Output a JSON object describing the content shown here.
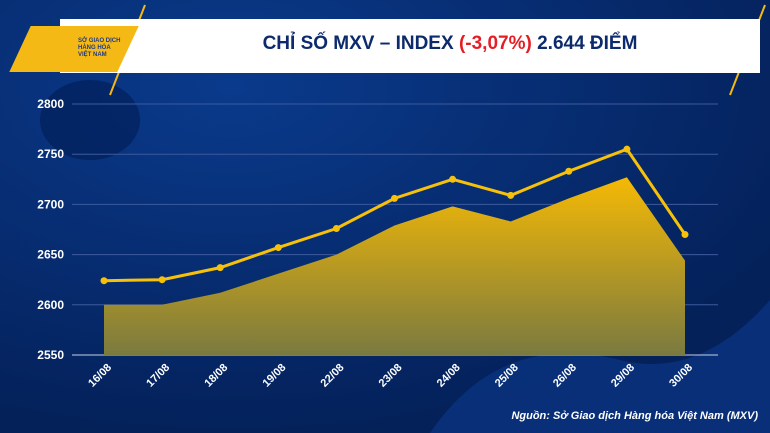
{
  "header": {
    "logo_lines": [
      "SỞ GIAO DỊCH",
      "HÀNG HÓA",
      "VIỆT NAM"
    ],
    "title_prefix": "CHỈ SỐ MXV – INDEX",
    "title_change": "(-3,07%)",
    "title_value": "2.644 ĐIỂM"
  },
  "source": "Nguồn: Sở Giao dịch Hàng hóa Việt Nam (MXV)",
  "colors": {
    "background": "#062a6e",
    "accent": "#f5b915",
    "negative": "#e41e26"
  },
  "chart_data": {
    "type": "line",
    "title": "CHỈ SỐ MXV – INDEX (-3,07%) 2.644 ĐIỂM",
    "categories": [
      "16/08",
      "17/08",
      "18/08",
      "19/08",
      "22/08",
      "23/08",
      "24/08",
      "25/08",
      "26/08",
      "29/08",
      "30/08"
    ],
    "series": [
      {
        "name": "line",
        "type": "line",
        "values": [
          2624,
          2625,
          2637,
          2657,
          2676,
          2706,
          2725,
          2709,
          2733,
          2755,
          2670
        ]
      },
      {
        "name": "area",
        "type": "area",
        "values": [
          2600,
          2600,
          2612,
          2631,
          2650,
          2679,
          2698,
          2683,
          2706,
          2727,
          2644
        ]
      }
    ],
    "yticks": [
      2550,
      2600,
      2650,
      2700,
      2750,
      2800
    ],
    "ylim": [
      2550,
      2800
    ],
    "grid": true,
    "xlabel": "",
    "ylabel": ""
  }
}
